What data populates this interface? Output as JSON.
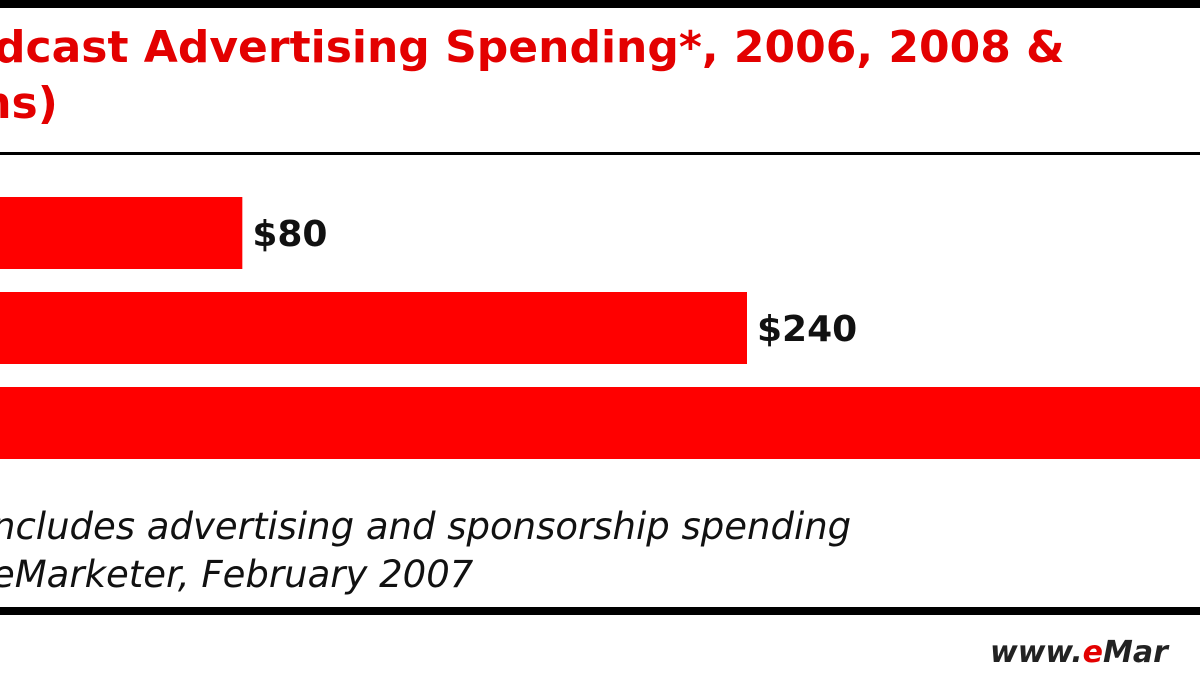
{
  "title_lines": [
    "dcast Advertising Spending*, 2006, 2008 &",
    "ons)"
  ],
  "chart_data": {
    "type": "bar",
    "orientation": "horizontal",
    "values": [
      80,
      240,
      null
    ],
    "data_labels": [
      "$80",
      "$240",
      ""
    ],
    "bar_color": "#ff0000"
  },
  "footnote": "ncludes advertising and sponsorship spending",
  "source": "eMarketer, February 2007",
  "brand": {
    "prefix": "www.",
    "e": "e",
    "rest": "Mar"
  }
}
